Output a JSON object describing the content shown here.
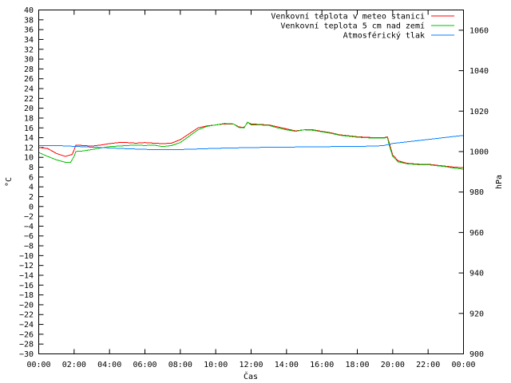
{
  "chart_data": {
    "type": "line",
    "xlabel": "Čas",
    "ylabel": "°C",
    "y2label": "hPa",
    "ylim": [
      -30,
      40
    ],
    "y2lim": [
      900,
      1070
    ],
    "xlim": [
      0,
      24
    ],
    "grid": false,
    "legend_position": "top-right",
    "x_tick_labels": [
      "00:00",
      "02:00",
      "04:00",
      "06:00",
      "08:00",
      "10:00",
      "12:00",
      "14:00",
      "16:00",
      "18:00",
      "20:00",
      "22:00",
      "00:00"
    ],
    "y_ticks": [
      -30,
      -28,
      -26,
      -24,
      -22,
      -20,
      -18,
      -16,
      -14,
      -12,
      -10,
      -8,
      -6,
      -4,
      -2,
      0,
      2,
      4,
      6,
      8,
      10,
      12,
      14,
      16,
      18,
      20,
      22,
      24,
      26,
      28,
      30,
      32,
      34,
      36,
      38,
      40
    ],
    "y2_ticks": [
      900,
      920,
      940,
      960,
      980,
      1000,
      1020,
      1040,
      1060
    ],
    "series": [
      {
        "name": "Venkovní teplota v meteo stanici",
        "color": "#ff0000",
        "axis": "left",
        "x": [
          0,
          0.5,
          1.0,
          1.5,
          1.9,
          2.1,
          2.5,
          3,
          3.5,
          4,
          4.5,
          5,
          5.5,
          6,
          6.5,
          7,
          7.5,
          8,
          8.5,
          9,
          9.5,
          10,
          10.5,
          11,
          11.3,
          11.6,
          11.8,
          12,
          12.5,
          13,
          13.5,
          14,
          14.5,
          15,
          15.5,
          16,
          16.5,
          17,
          17.5,
          18,
          18.5,
          19,
          19.5,
          19.7,
          19.8,
          20,
          20.3,
          20.8,
          21.5,
          22,
          22.5,
          23,
          23.5,
          24
        ],
        "y": [
          12,
          11.8,
          10.8,
          10.2,
          10.6,
          12.5,
          12.4,
          12.3,
          12.5,
          12.8,
          13.0,
          13.0,
          12.9,
          13.0,
          12.9,
          12.8,
          12.9,
          13.6,
          14.8,
          16.0,
          16.4,
          16.6,
          16.8,
          16.8,
          16.2,
          16.1,
          17.1,
          16.8,
          16.7,
          16.6,
          16.2,
          15.8,
          15.4,
          15.6,
          15.6,
          15.3,
          15.0,
          14.6,
          14.4,
          14.2,
          14.1,
          14.0,
          14.0,
          14.2,
          13.0,
          10.5,
          9.3,
          8.8,
          8.6,
          8.6,
          8.4,
          8.2,
          8.0,
          7.9
        ]
      },
      {
        "name": "Venkovní teplota 5 cm nad zemí",
        "color": "#00c000",
        "axis": "left",
        "x": [
          0,
          0.5,
          1.0,
          1.5,
          1.8,
          2.0,
          2.1,
          2.5,
          3,
          3.5,
          4,
          4.5,
          5,
          5.5,
          6,
          6.5,
          7,
          7.5,
          8,
          8.5,
          9,
          9.5,
          10,
          10.5,
          11,
          11.3,
          11.6,
          11.8,
          12,
          12.5,
          13,
          13.5,
          14,
          14.5,
          15,
          15.5,
          16,
          16.5,
          17,
          17.5,
          18,
          18.5,
          19,
          19.5,
          19.7,
          19.8,
          20,
          20.3,
          20.8,
          21.5,
          22,
          22.5,
          23,
          23.5,
          24
        ],
        "y": [
          11,
          10.2,
          9.5,
          9.0,
          9.0,
          10.2,
          11.2,
          11.3,
          11.6,
          11.9,
          12.2,
          12.3,
          12.4,
          12.5,
          12.4,
          12.5,
          12.2,
          12.4,
          13.0,
          14.3,
          15.6,
          16.3,
          16.6,
          16.9,
          16.8,
          16.1,
          16.0,
          17.2,
          16.6,
          16.6,
          16.5,
          16.0,
          15.6,
          15.3,
          15.6,
          15.5,
          15.2,
          14.9,
          14.5,
          14.3,
          14.1,
          14.0,
          13.9,
          13.9,
          14.1,
          12.5,
          10.2,
          9.1,
          8.7,
          8.5,
          8.5,
          8.3,
          8.1,
          7.8,
          7.6
        ]
      },
      {
        "name": "Atmosférický tlak",
        "color": "#0080ff",
        "axis": "right",
        "x": [
          0,
          1,
          2,
          3,
          4,
          5,
          6,
          7,
          8,
          9,
          10,
          11,
          12,
          13,
          14,
          15,
          16,
          17,
          18,
          19,
          19.5,
          20,
          21,
          22,
          23,
          24
        ],
        "y": [
          1003.0,
          1003.0,
          1002.6,
          1002.2,
          1001.8,
          1001.4,
          1001.1,
          1000.9,
          1001.0,
          1001.3,
          1001.6,
          1001.8,
          1002.0,
          1002.1,
          1002.2,
          1002.3,
          1002.4,
          1002.5,
          1002.6,
          1002.7,
          1003.0,
          1004.0,
          1005.0,
          1006.0,
          1007.0,
          1008.0
        ]
      }
    ]
  }
}
